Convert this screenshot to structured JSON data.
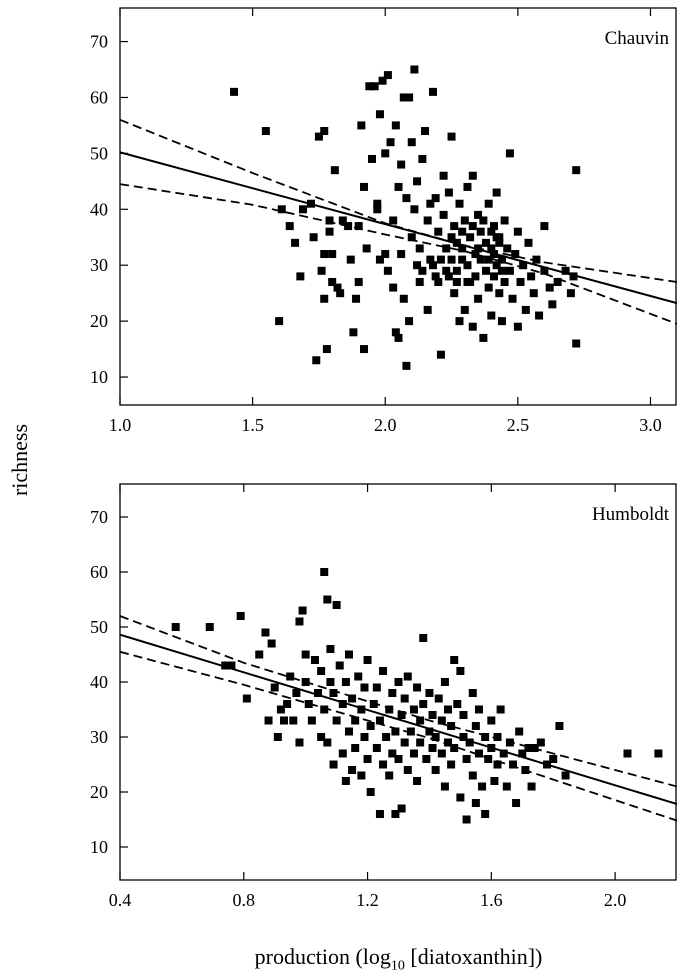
{
  "figure": {
    "ylabel": "richness",
    "xlabel_prefix": "production (log",
    "xlabel_sub": "10",
    "xlabel_suffix": " [diatoxanthin])"
  },
  "chart_data": [
    {
      "type": "scatter",
      "title": "Chauvin",
      "xlim": [
        1.0,
        3.1
      ],
      "ylim": [
        5,
        76
      ],
      "xticks": [
        1.0,
        1.5,
        2.0,
        2.5,
        3.0
      ],
      "yticks": [
        10,
        20,
        30,
        40,
        50,
        60,
        70
      ],
      "grid": false,
      "fit": {
        "x": [
          1.0,
          3.1
        ],
        "y": [
          50.2,
          23.2
        ]
      },
      "ci_upper": {
        "x": [
          1.0,
          1.5,
          2.0,
          2.3,
          2.6,
          3.1
        ],
        "y": [
          56,
          46.5,
          37.5,
          33.5,
          30.5,
          27
        ]
      },
      "ci_lower": {
        "x": [
          1.0,
          1.5,
          2.0,
          2.3,
          2.6,
          3.1
        ],
        "y": [
          44.5,
          40.8,
          35.5,
          32.5,
          28.5,
          19.5
        ]
      },
      "points": [
        [
          1.43,
          61
        ],
        [
          1.55,
          54
        ],
        [
          1.6,
          20
        ],
        [
          1.61,
          40
        ],
        [
          1.64,
          37
        ],
        [
          1.66,
          34
        ],
        [
          1.68,
          28
        ],
        [
          1.69,
          40
        ],
        [
          1.72,
          41
        ],
        [
          1.73,
          35
        ],
        [
          1.74,
          13
        ],
        [
          1.75,
          53
        ],
        [
          1.76,
          29
        ],
        [
          1.77,
          54
        ],
        [
          1.77,
          24
        ],
        [
          1.77,
          32
        ],
        [
          1.78,
          15
        ],
        [
          1.79,
          38
        ],
        [
          1.79,
          36
        ],
        [
          1.8,
          27
        ],
        [
          1.8,
          32
        ],
        [
          1.81,
          47
        ],
        [
          1.82,
          26
        ],
        [
          1.83,
          25
        ],
        [
          1.84,
          38
        ],
        [
          1.86,
          37
        ],
        [
          1.87,
          31
        ],
        [
          1.88,
          18
        ],
        [
          1.89,
          24
        ],
        [
          1.9,
          27
        ],
        [
          1.9,
          37
        ],
        [
          1.91,
          55
        ],
        [
          1.92,
          15
        ],
        [
          1.92,
          44
        ],
        [
          1.93,
          33
        ],
        [
          1.94,
          62
        ],
        [
          1.95,
          49
        ],
        [
          1.96,
          62
        ],
        [
          1.97,
          40
        ],
        [
          1.97,
          41
        ],
        [
          1.98,
          57
        ],
        [
          1.98,
          31
        ],
        [
          1.99,
          63
        ],
        [
          2.0,
          32
        ],
        [
          2.0,
          50
        ],
        [
          2.01,
          64
        ],
        [
          2.01,
          29
        ],
        [
          2.02,
          52
        ],
        [
          2.03,
          38
        ],
        [
          2.03,
          26
        ],
        [
          2.04,
          18
        ],
        [
          2.04,
          55
        ],
        [
          2.05,
          17
        ],
        [
          2.05,
          44
        ],
        [
          2.06,
          32
        ],
        [
          2.06,
          48
        ],
        [
          2.07,
          60
        ],
        [
          2.07,
          24
        ],
        [
          2.08,
          12
        ],
        [
          2.08,
          42
        ],
        [
          2.09,
          60
        ],
        [
          2.09,
          20
        ],
        [
          2.1,
          35
        ],
        [
          2.1,
          52
        ],
        [
          2.11,
          65
        ],
        [
          2.11,
          40
        ],
        [
          2.12,
          30
        ],
        [
          2.12,
          45
        ],
        [
          2.13,
          33
        ],
        [
          2.13,
          27
        ],
        [
          2.14,
          29
        ],
        [
          2.14,
          49
        ],
        [
          2.15,
          54
        ],
        [
          2.16,
          38
        ],
        [
          2.16,
          22
        ],
        [
          2.17,
          41
        ],
        [
          2.18,
          61
        ],
        [
          2.18,
          30
        ],
        [
          2.19,
          42
        ],
        [
          2.2,
          36
        ],
        [
          2.2,
          27
        ],
        [
          2.21,
          14
        ],
        [
          2.22,
          39
        ],
        [
          2.22,
          46
        ],
        [
          2.23,
          33
        ],
        [
          2.24,
          28
        ],
        [
          2.24,
          43
        ],
        [
          2.25,
          53
        ],
        [
          2.25,
          31
        ],
        [
          2.26,
          37
        ],
        [
          2.26,
          25
        ],
        [
          2.27,
          29
        ],
        [
          2.27,
          34
        ],
        [
          2.28,
          20
        ],
        [
          2.28,
          41
        ],
        [
          2.29,
          36
        ],
        [
          2.29,
          33
        ],
        [
          2.3,
          38
        ],
        [
          2.3,
          22
        ],
        [
          2.31,
          44
        ],
        [
          2.31,
          30
        ],
        [
          2.32,
          27
        ],
        [
          2.32,
          35
        ],
        [
          2.33,
          19
        ],
        [
          2.33,
          46
        ],
        [
          2.34,
          32
        ],
        [
          2.34,
          28
        ],
        [
          2.35,
          39
        ],
        [
          2.35,
          24
        ],
        [
          2.36,
          36
        ],
        [
          2.36,
          31
        ],
        [
          2.37,
          17
        ],
        [
          2.37,
          38
        ],
        [
          2.38,
          29
        ],
        [
          2.38,
          34
        ],
        [
          2.39,
          26
        ],
        [
          2.39,
          41
        ],
        [
          2.4,
          33
        ],
        [
          2.4,
          21
        ],
        [
          2.41,
          37
        ],
        [
          2.41,
          28
        ],
        [
          2.42,
          30
        ],
        [
          2.42,
          43
        ],
        [
          2.43,
          25
        ],
        [
          2.43,
          35
        ],
        [
          2.44,
          31
        ],
        [
          2.44,
          20
        ],
        [
          2.45,
          38
        ],
        [
          2.45,
          27
        ],
        [
          2.46,
          33
        ],
        [
          2.47,
          50
        ],
        [
          2.47,
          29
        ],
        [
          2.48,
          24
        ],
        [
          2.49,
          32
        ],
        [
          2.5,
          19
        ],
        [
          2.5,
          36
        ],
        [
          2.51,
          27
        ],
        [
          2.52,
          30
        ],
        [
          2.53,
          22
        ],
        [
          2.54,
          34
        ],
        [
          2.55,
          28
        ],
        [
          2.56,
          25
        ],
        [
          2.57,
          31
        ],
        [
          2.58,
          21
        ],
        [
          2.6,
          37
        ],
        [
          2.6,
          29
        ],
        [
          2.62,
          26
        ],
        [
          2.63,
          23
        ],
        [
          2.65,
          27
        ],
        [
          2.68,
          29
        ],
        [
          2.7,
          25
        ],
        [
          2.72,
          47
        ],
        [
          2.72,
          16
        ],
        [
          2.71,
          28
        ],
        [
          2.4,
          36
        ],
        [
          2.41,
          32
        ],
        [
          2.42,
          35
        ],
        [
          2.43,
          34
        ],
        [
          2.44,
          29
        ],
        [
          2.39,
          31
        ],
        [
          2.35,
          33
        ],
        [
          2.33,
          37
        ],
        [
          2.31,
          27
        ],
        [
          2.29,
          31
        ],
        [
          2.27,
          27
        ],
        [
          2.25,
          35
        ],
        [
          2.23,
          29
        ],
        [
          2.21,
          31
        ],
        [
          2.19,
          28
        ],
        [
          2.17,
          31
        ]
      ]
    },
    {
      "type": "scatter",
      "title": "Humboldt",
      "xlim": [
        0.4,
        2.2
      ],
      "ylim": [
        4,
        76
      ],
      "xticks": [
        0.4,
        0.8,
        1.2,
        1.6,
        2.0
      ],
      "yticks": [
        10,
        20,
        30,
        40,
        50,
        60,
        70
      ],
      "grid": false,
      "fit": {
        "x": [
          0.4,
          2.2
        ],
        "y": [
          48.6,
          17.8
        ]
      },
      "ci_upper": {
        "x": [
          0.4,
          0.8,
          1.2,
          1.4,
          1.6,
          2.2
        ],
        "y": [
          52,
          43.5,
          36.5,
          33.0,
          30.0,
          21
        ]
      },
      "ci_lower": {
        "x": [
          0.4,
          0.8,
          1.2,
          1.4,
          1.6,
          2.2
        ],
        "y": [
          45.5,
          39.5,
          33.0,
          29.8,
          26.0,
          14.8
        ]
      },
      "points": [
        [
          0.58,
          50
        ],
        [
          0.69,
          50
        ],
        [
          0.74,
          43
        ],
        [
          0.76,
          43
        ],
        [
          0.79,
          52
        ],
        [
          0.81,
          37
        ],
        [
          0.85,
          45
        ],
        [
          0.87,
          49
        ],
        [
          0.88,
          33
        ],
        [
          0.89,
          47
        ],
        [
          0.9,
          39
        ],
        [
          0.91,
          30
        ],
        [
          0.92,
          35
        ],
        [
          0.93,
          33
        ],
        [
          0.94,
          36
        ],
        [
          0.95,
          41
        ],
        [
          0.96,
          33
        ],
        [
          0.97,
          38
        ],
        [
          0.98,
          29
        ],
        [
          0.98,
          51
        ],
        [
          0.99,
          53
        ],
        [
          1.0,
          40
        ],
        [
          1.0,
          45
        ],
        [
          1.01,
          36
        ],
        [
          1.02,
          33
        ],
        [
          1.03,
          44
        ],
        [
          1.04,
          38
        ],
        [
          1.05,
          30
        ],
        [
          1.05,
          42
        ],
        [
          1.06,
          60
        ],
        [
          1.06,
          35
        ],
        [
          1.07,
          55
        ],
        [
          1.07,
          29
        ],
        [
          1.08,
          46
        ],
        [
          1.08,
          40
        ],
        [
          1.09,
          25
        ],
        [
          1.09,
          38
        ],
        [
          1.1,
          54
        ],
        [
          1.1,
          33
        ],
        [
          1.11,
          43
        ],
        [
          1.12,
          27
        ],
        [
          1.12,
          36
        ],
        [
          1.13,
          22
        ],
        [
          1.13,
          40
        ],
        [
          1.14,
          31
        ],
        [
          1.14,
          45
        ],
        [
          1.15,
          24
        ],
        [
          1.15,
          37
        ],
        [
          1.16,
          28
        ],
        [
          1.16,
          33
        ],
        [
          1.17,
          41
        ],
        [
          1.18,
          23
        ],
        [
          1.18,
          35
        ],
        [
          1.19,
          30
        ],
        [
          1.19,
          39
        ],
        [
          1.2,
          26
        ],
        [
          1.2,
          44
        ],
        [
          1.21,
          32
        ],
        [
          1.21,
          20
        ],
        [
          1.22,
          36
        ],
        [
          1.23,
          28
        ],
        [
          1.23,
          39
        ],
        [
          1.24,
          16
        ],
        [
          1.24,
          33
        ],
        [
          1.25,
          25
        ],
        [
          1.25,
          42
        ],
        [
          1.26,
          30
        ],
        [
          1.27,
          35
        ],
        [
          1.27,
          23
        ],
        [
          1.28,
          38
        ],
        [
          1.28,
          27
        ],
        [
          1.29,
          16
        ],
        [
          1.29,
          31
        ],
        [
          1.3,
          40
        ],
        [
          1.3,
          26
        ],
        [
          1.31,
          34
        ],
        [
          1.31,
          17
        ],
        [
          1.32,
          29
        ],
        [
          1.32,
          37
        ],
        [
          1.33,
          24
        ],
        [
          1.33,
          41
        ],
        [
          1.34,
          31
        ],
        [
          1.35,
          35
        ],
        [
          1.35,
          27
        ],
        [
          1.36,
          39
        ],
        [
          1.36,
          22
        ],
        [
          1.37,
          33
        ],
        [
          1.37,
          29
        ],
        [
          1.38,
          48
        ],
        [
          1.38,
          36
        ],
        [
          1.39,
          26
        ],
        [
          1.4,
          31
        ],
        [
          1.4,
          38
        ],
        [
          1.41,
          28
        ],
        [
          1.41,
          34
        ],
        [
          1.42,
          24
        ],
        [
          1.42,
          30
        ],
        [
          1.43,
          37
        ],
        [
          1.44,
          27
        ],
        [
          1.44,
          33
        ],
        [
          1.45,
          21
        ],
        [
          1.45,
          40
        ],
        [
          1.46,
          29
        ],
        [
          1.46,
          35
        ],
        [
          1.47,
          25
        ],
        [
          1.47,
          32
        ],
        [
          1.48,
          44
        ],
        [
          1.48,
          28
        ],
        [
          1.49,
          36
        ],
        [
          1.5,
          19
        ],
        [
          1.5,
          42
        ],
        [
          1.51,
          30
        ],
        [
          1.51,
          34
        ],
        [
          1.52,
          26
        ],
        [
          1.52,
          15
        ],
        [
          1.53,
          29
        ],
        [
          1.54,
          38
        ],
        [
          1.54,
          23
        ],
        [
          1.55,
          18
        ],
        [
          1.55,
          32
        ],
        [
          1.56,
          27
        ],
        [
          1.56,
          35
        ],
        [
          1.57,
          21
        ],
        [
          1.58,
          30
        ],
        [
          1.58,
          16
        ],
        [
          1.59,
          26
        ],
        [
          1.6,
          33
        ],
        [
          1.6,
          28
        ],
        [
          1.61,
          22
        ],
        [
          1.62,
          30
        ],
        [
          1.62,
          25
        ],
        [
          1.63,
          35
        ],
        [
          1.64,
          27
        ],
        [
          1.65,
          21
        ],
        [
          1.66,
          29
        ],
        [
          1.67,
          25
        ],
        [
          1.68,
          18
        ],
        [
          1.69,
          31
        ],
        [
          1.7,
          27
        ],
        [
          1.71,
          24
        ],
        [
          1.72,
          28
        ],
        [
          1.73,
          21
        ],
        [
          1.74,
          28
        ],
        [
          1.76,
          29
        ],
        [
          1.78,
          25
        ],
        [
          1.8,
          26
        ],
        [
          1.82,
          32
        ],
        [
          1.84,
          23
        ],
        [
          2.04,
          27
        ],
        [
          2.14,
          27
        ]
      ]
    }
  ]
}
